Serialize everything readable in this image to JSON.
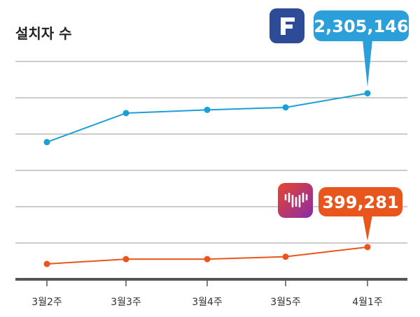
{
  "chart_data": {
    "type": "line",
    "title": "설치자 수",
    "categories": [
      "3월2주",
      "3월3주",
      "3월4주",
      "3월5주",
      "4월1주"
    ],
    "ylim": [
      0,
      2700000
    ],
    "grid": true,
    "series": [
      {
        "values": [
          1700000,
          2060000,
          2100000,
          2130000,
          2305146
        ],
        "color": "#1a9fd8",
        "icon": "f-app-icon",
        "callout": "2,305,146",
        "callout_color": "#2a9fd9"
      },
      {
        "values": [
          190000,
          250000,
          250000,
          280000,
          399281
        ],
        "color": "#e8561d",
        "icon": "heart-bars-app-icon",
        "callout": "399,281",
        "callout_color": "#e8561d"
      }
    ]
  }
}
